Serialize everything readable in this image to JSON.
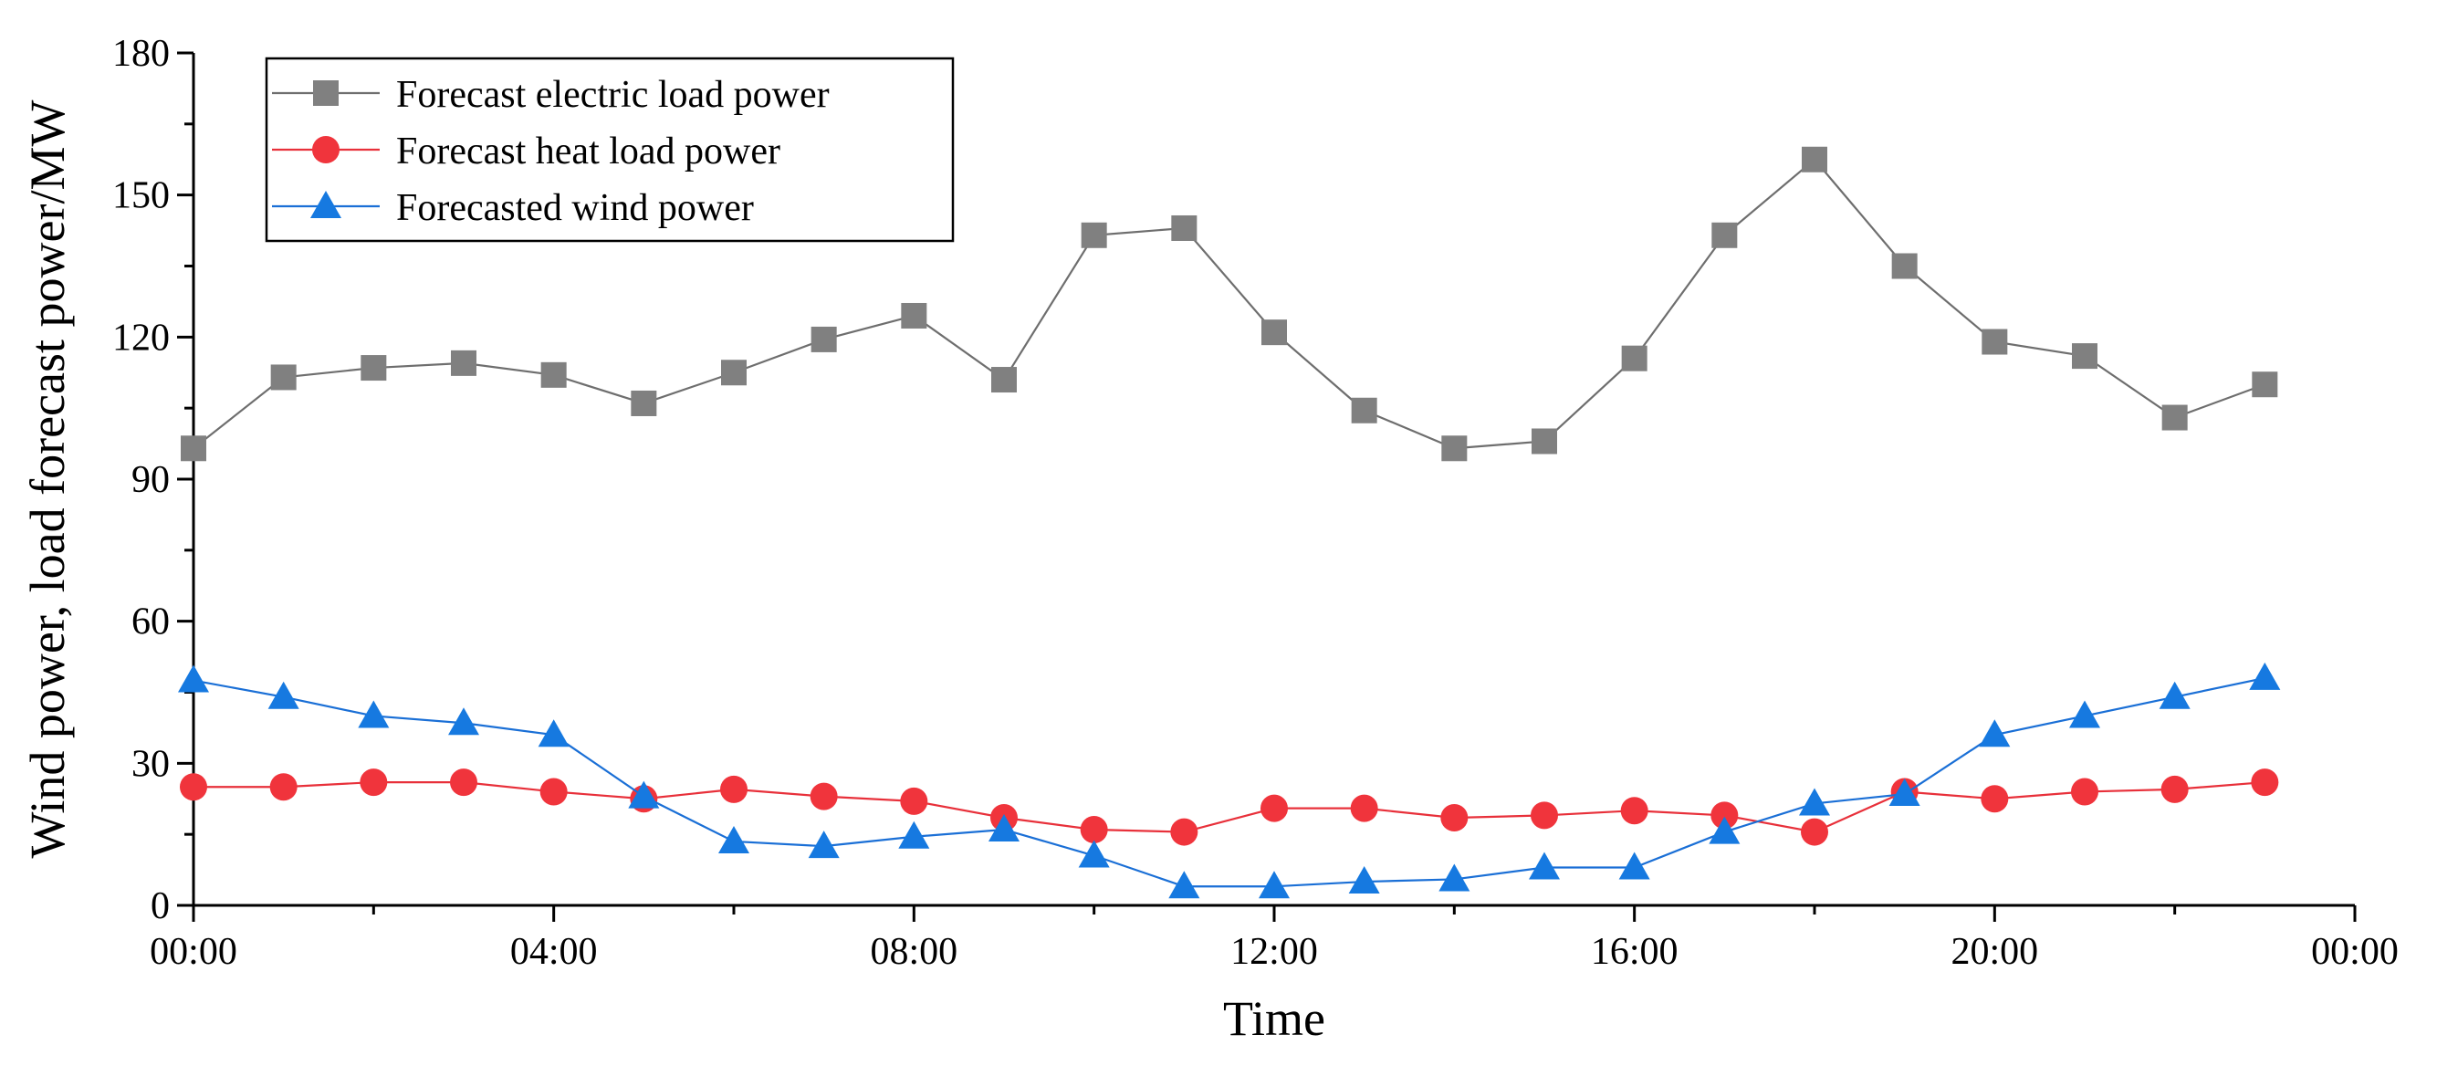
{
  "chart_data": {
    "type": "line",
    "title": "",
    "xlabel": "Time",
    "ylabel": "Wind power, load forecast power/MW",
    "ylim": [
      0,
      180
    ],
    "yticks": [
      0,
      30,
      60,
      90,
      120,
      150,
      180
    ],
    "xlim": [
      0,
      24
    ],
    "xticks": [
      {
        "value": 0,
        "label": "00:00"
      },
      {
        "value": 4,
        "label": "04:00"
      },
      {
        "value": 8,
        "label": "08:00"
      },
      {
        "value": 12,
        "label": "12:00"
      },
      {
        "value": 16,
        "label": "16:00"
      },
      {
        "value": 20,
        "label": "20:00"
      },
      {
        "value": 24,
        "label": "00:00"
      }
    ],
    "x": [
      0,
      1,
      2,
      3,
      4,
      5,
      6,
      7,
      8,
      9,
      10,
      11,
      12,
      13,
      14,
      15,
      16,
      17,
      18,
      19,
      20,
      21,
      22,
      23
    ],
    "legend_position": "top-left",
    "series": [
      {
        "name": "Forecast electric load power",
        "color": "#6e6e6e",
        "marker_color": "#808080",
        "marker": "square",
        "values": [
          96.5,
          111.5,
          113.5,
          114.5,
          112,
          106,
          112.5,
          119.5,
          124.5,
          111,
          141.5,
          143,
          121,
          104.5,
          96.5,
          98,
          115.5,
          141.5,
          157.5,
          135,
          119,
          116,
          103,
          110
        ]
      },
      {
        "name": "Forecast heat load power",
        "color": "#e8303a",
        "marker_color": "#f0343c",
        "marker": "circle",
        "values": [
          25,
          25,
          26,
          26,
          24,
          22.5,
          24.5,
          23,
          22,
          18.5,
          16,
          15.5,
          20.5,
          20.5,
          18.5,
          19,
          20,
          19,
          15.5,
          24,
          22.5,
          24,
          24.5,
          26
        ]
      },
      {
        "name": "Forecasted wind power",
        "color": "#1a6fd6",
        "marker_color": "#1679e0",
        "marker": "triangle",
        "values": [
          47.5,
          44,
          40,
          38.5,
          36,
          23,
          13.5,
          12.5,
          14.5,
          16,
          10.5,
          4,
          4,
          5,
          5.5,
          8,
          8,
          15.5,
          21.5,
          23.5,
          36,
          40,
          44,
          48
        ]
      }
    ]
  }
}
